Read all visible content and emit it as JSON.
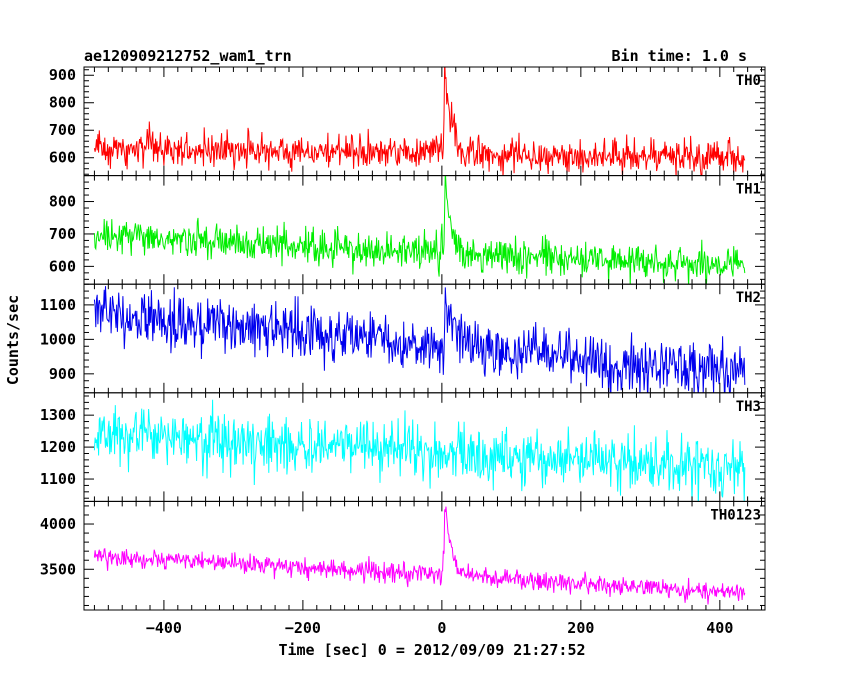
{
  "header": {
    "title": "ae120909212752_wam1_trn",
    "bin_time": "Bin time: 1.0 s"
  },
  "chart_data": {
    "type": "line",
    "title": "ae120909212752_wam1_trn",
    "subtitle": "Bin time: 1.0 s",
    "xlabel": "Time [sec] 0 = 2012/09/09 21:27:52",
    "ylabel": "Counts/sec",
    "xlim": [
      -515,
      465
    ],
    "x_ticks": [
      -400,
      -200,
      0,
      200,
      400
    ],
    "x_tick_labels": [
      "−400",
      "−200",
      "0",
      "200",
      "400"
    ],
    "x_range_data": [
      -500,
      436
    ],
    "bin_seconds": 1.0,
    "legend": "none",
    "grid": false,
    "series": [
      {
        "name": "TH0",
        "color": "#ff0000",
        "ylim": [
          535,
          930
        ],
        "y_ticks": [
          600,
          700,
          800,
          900
        ],
        "baseline_start": 635,
        "baseline_end": 600,
        "noise": 30,
        "peak_time": 4,
        "peak_value": 930,
        "decay_seconds": 9,
        "samples": [
          {
            "x": -500,
            "y": 635
          },
          {
            "x": -300,
            "y": 630
          },
          {
            "x": -100,
            "y": 620
          },
          {
            "x": -10,
            "y": 640
          },
          {
            "x": 4,
            "y": 930
          },
          {
            "x": 20,
            "y": 660
          },
          {
            "x": 200,
            "y": 610
          },
          {
            "x": 436,
            "y": 600
          }
        ]
      },
      {
        "name": "TH1",
        "color": "#00ee00",
        "ylim": [
          545,
          880
        ],
        "y_ticks": [
          600,
          700,
          800
        ],
        "baseline_start": 690,
        "baseline_end": 600,
        "noise": 27,
        "peak_time": 5,
        "peak_value": 875,
        "decay_seconds": 8,
        "samples": [
          {
            "x": -500,
            "y": 690
          },
          {
            "x": -300,
            "y": 670
          },
          {
            "x": -100,
            "y": 645
          },
          {
            "x": -10,
            "y": 650
          },
          {
            "x": 5,
            "y": 875
          },
          {
            "x": 20,
            "y": 660
          },
          {
            "x": 200,
            "y": 615
          },
          {
            "x": 436,
            "y": 600
          }
        ]
      },
      {
        "name": "TH2",
        "color": "#0000ee",
        "ylim": [
          845,
          1160
        ],
        "y_ticks": [
          900,
          1000,
          1100
        ],
        "baseline_start": 1075,
        "baseline_end": 900,
        "noise": 38,
        "peak_time": 5,
        "peak_value": 1150,
        "decay_seconds": 12,
        "samples": [
          {
            "x": -500,
            "y": 1075
          },
          {
            "x": -300,
            "y": 1045
          },
          {
            "x": -100,
            "y": 1000
          },
          {
            "x": -10,
            "y": 1000
          },
          {
            "x": 5,
            "y": 1150
          },
          {
            "x": 30,
            "y": 1000
          },
          {
            "x": 200,
            "y": 940
          },
          {
            "x": 436,
            "y": 900
          }
        ]
      },
      {
        "name": "TH3",
        "color": "#00ffff",
        "ylim": [
          1030,
          1370
        ],
        "y_ticks": [
          1100,
          1200,
          1300
        ],
        "baseline_start": 1245,
        "baseline_end": 1130,
        "noise": 45,
        "peak_time": null,
        "peak_value": null,
        "decay_seconds": null,
        "samples": [
          {
            "x": -500,
            "y": 1245
          },
          {
            "x": -300,
            "y": 1220
          },
          {
            "x": -100,
            "y": 1195
          },
          {
            "x": 0,
            "y": 1185
          },
          {
            "x": 200,
            "y": 1160
          },
          {
            "x": 436,
            "y": 1130
          }
        ]
      },
      {
        "name": "TH0123",
        "color": "#ff00ff",
        "ylim": [
          3050,
          4250
        ],
        "y_ticks": [
          3500,
          4000
        ],
        "baseline_start": 3650,
        "baseline_end": 3240,
        "noise": 55,
        "peak_time": 4,
        "peak_value": 4200,
        "decay_seconds": 10,
        "samples": [
          {
            "x": -500,
            "y": 3650
          },
          {
            "x": -300,
            "y": 3570
          },
          {
            "x": -100,
            "y": 3470
          },
          {
            "x": -10,
            "y": 3420
          },
          {
            "x": 4,
            "y": 4200
          },
          {
            "x": 30,
            "y": 3450
          },
          {
            "x": 200,
            "y": 3330
          },
          {
            "x": 436,
            "y": 3240
          }
        ]
      }
    ]
  }
}
